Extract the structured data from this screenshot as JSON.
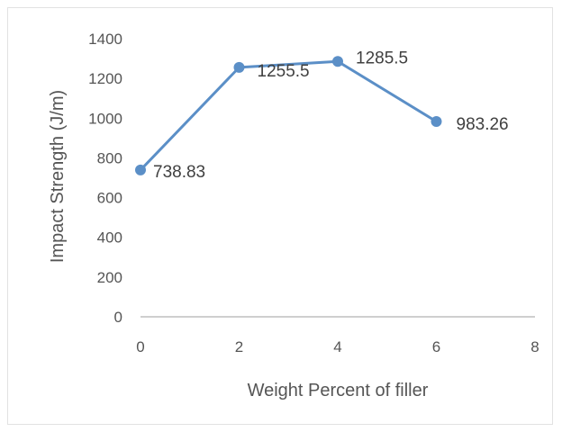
{
  "chart_data": {
    "type": "line",
    "xlabel": "Weight Percent of filler",
    "ylabel": "Impact Strength (J/m)",
    "xlim": [
      0,
      8
    ],
    "ylim": [
      0,
      1400
    ],
    "x_ticks": [
      "0",
      "2",
      "4",
      "6",
      "8"
    ],
    "y_ticks": [
      "0",
      "200",
      "400",
      "600",
      "800",
      "1000",
      "1200",
      "1400"
    ],
    "grid": false,
    "legend": "none",
    "series": [
      {
        "x": [
          0,
          2,
          4,
          6
        ],
        "values": [
          738.83,
          1255.5,
          1285.5,
          983.26
        ],
        "labels": [
          "738.83",
          "1255.5",
          "1285.5",
          "983.26"
        ],
        "color": "#5b8fc7"
      }
    ]
  }
}
